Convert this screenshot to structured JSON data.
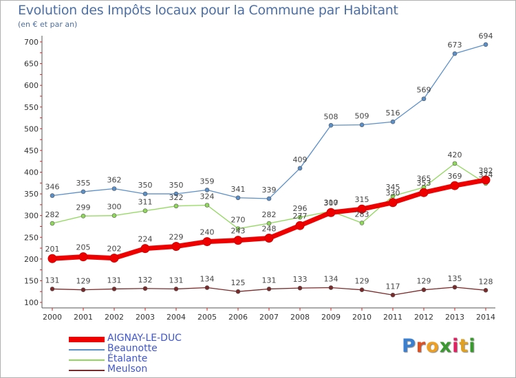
{
  "title": "Evolution des Impôts locaux pour la Commune par Habitant",
  "subtitle": "(en € et par an)",
  "logo_text": "Proxiti",
  "colors": {
    "title": "#4d6fa3",
    "axis": "#555555",
    "grid": "#cc2020",
    "legend_text": "#3f56d0"
  },
  "chart_data": {
    "type": "line",
    "title": "Evolution des Impôts locaux pour la Commune par Habitant",
    "subtitle": "(en € et par an)",
    "xlabel": "",
    "ylabel": "",
    "ylim": [
      100,
      700
    ],
    "yticks": [
      100,
      150,
      200,
      250,
      300,
      350,
      400,
      450,
      500,
      550,
      600,
      650,
      700
    ],
    "x": [
      "2000",
      "2001",
      "2002",
      "2003",
      "2004",
      "2005",
      "2006",
      "2007",
      "2008",
      "2009",
      "2010",
      "2011",
      "2012",
      "2013",
      "2014"
    ],
    "legend_position": "bottom-left",
    "series": [
      {
        "name": "AIGNAY-LE-DUC",
        "color": "#ee0000",
        "values": [
          201,
          205,
          202,
          224,
          229,
          240,
          243,
          248,
          277,
          307,
          315,
          330,
          353,
          369,
          382
        ]
      },
      {
        "name": "Beaunotte",
        "color": "#5b8fc8",
        "values": [
          346,
          355,
          362,
          350,
          350,
          359,
          341,
          339,
          409,
          508,
          509,
          516,
          569,
          673,
          694
        ]
      },
      {
        "name": "Étalante",
        "color": "#8fd85a",
        "values": [
          282,
          299,
          300,
          311,
          322,
          324,
          270,
          282,
          296,
          310,
          283,
          345,
          365,
          420,
          374
        ]
      },
      {
        "name": "Meulson",
        "color": "#7a2a2a",
        "values": [
          131,
          129,
          131,
          132,
          131,
          134,
          125,
          131,
          133,
          134,
          129,
          117,
          129,
          135,
          128
        ]
      }
    ]
  }
}
